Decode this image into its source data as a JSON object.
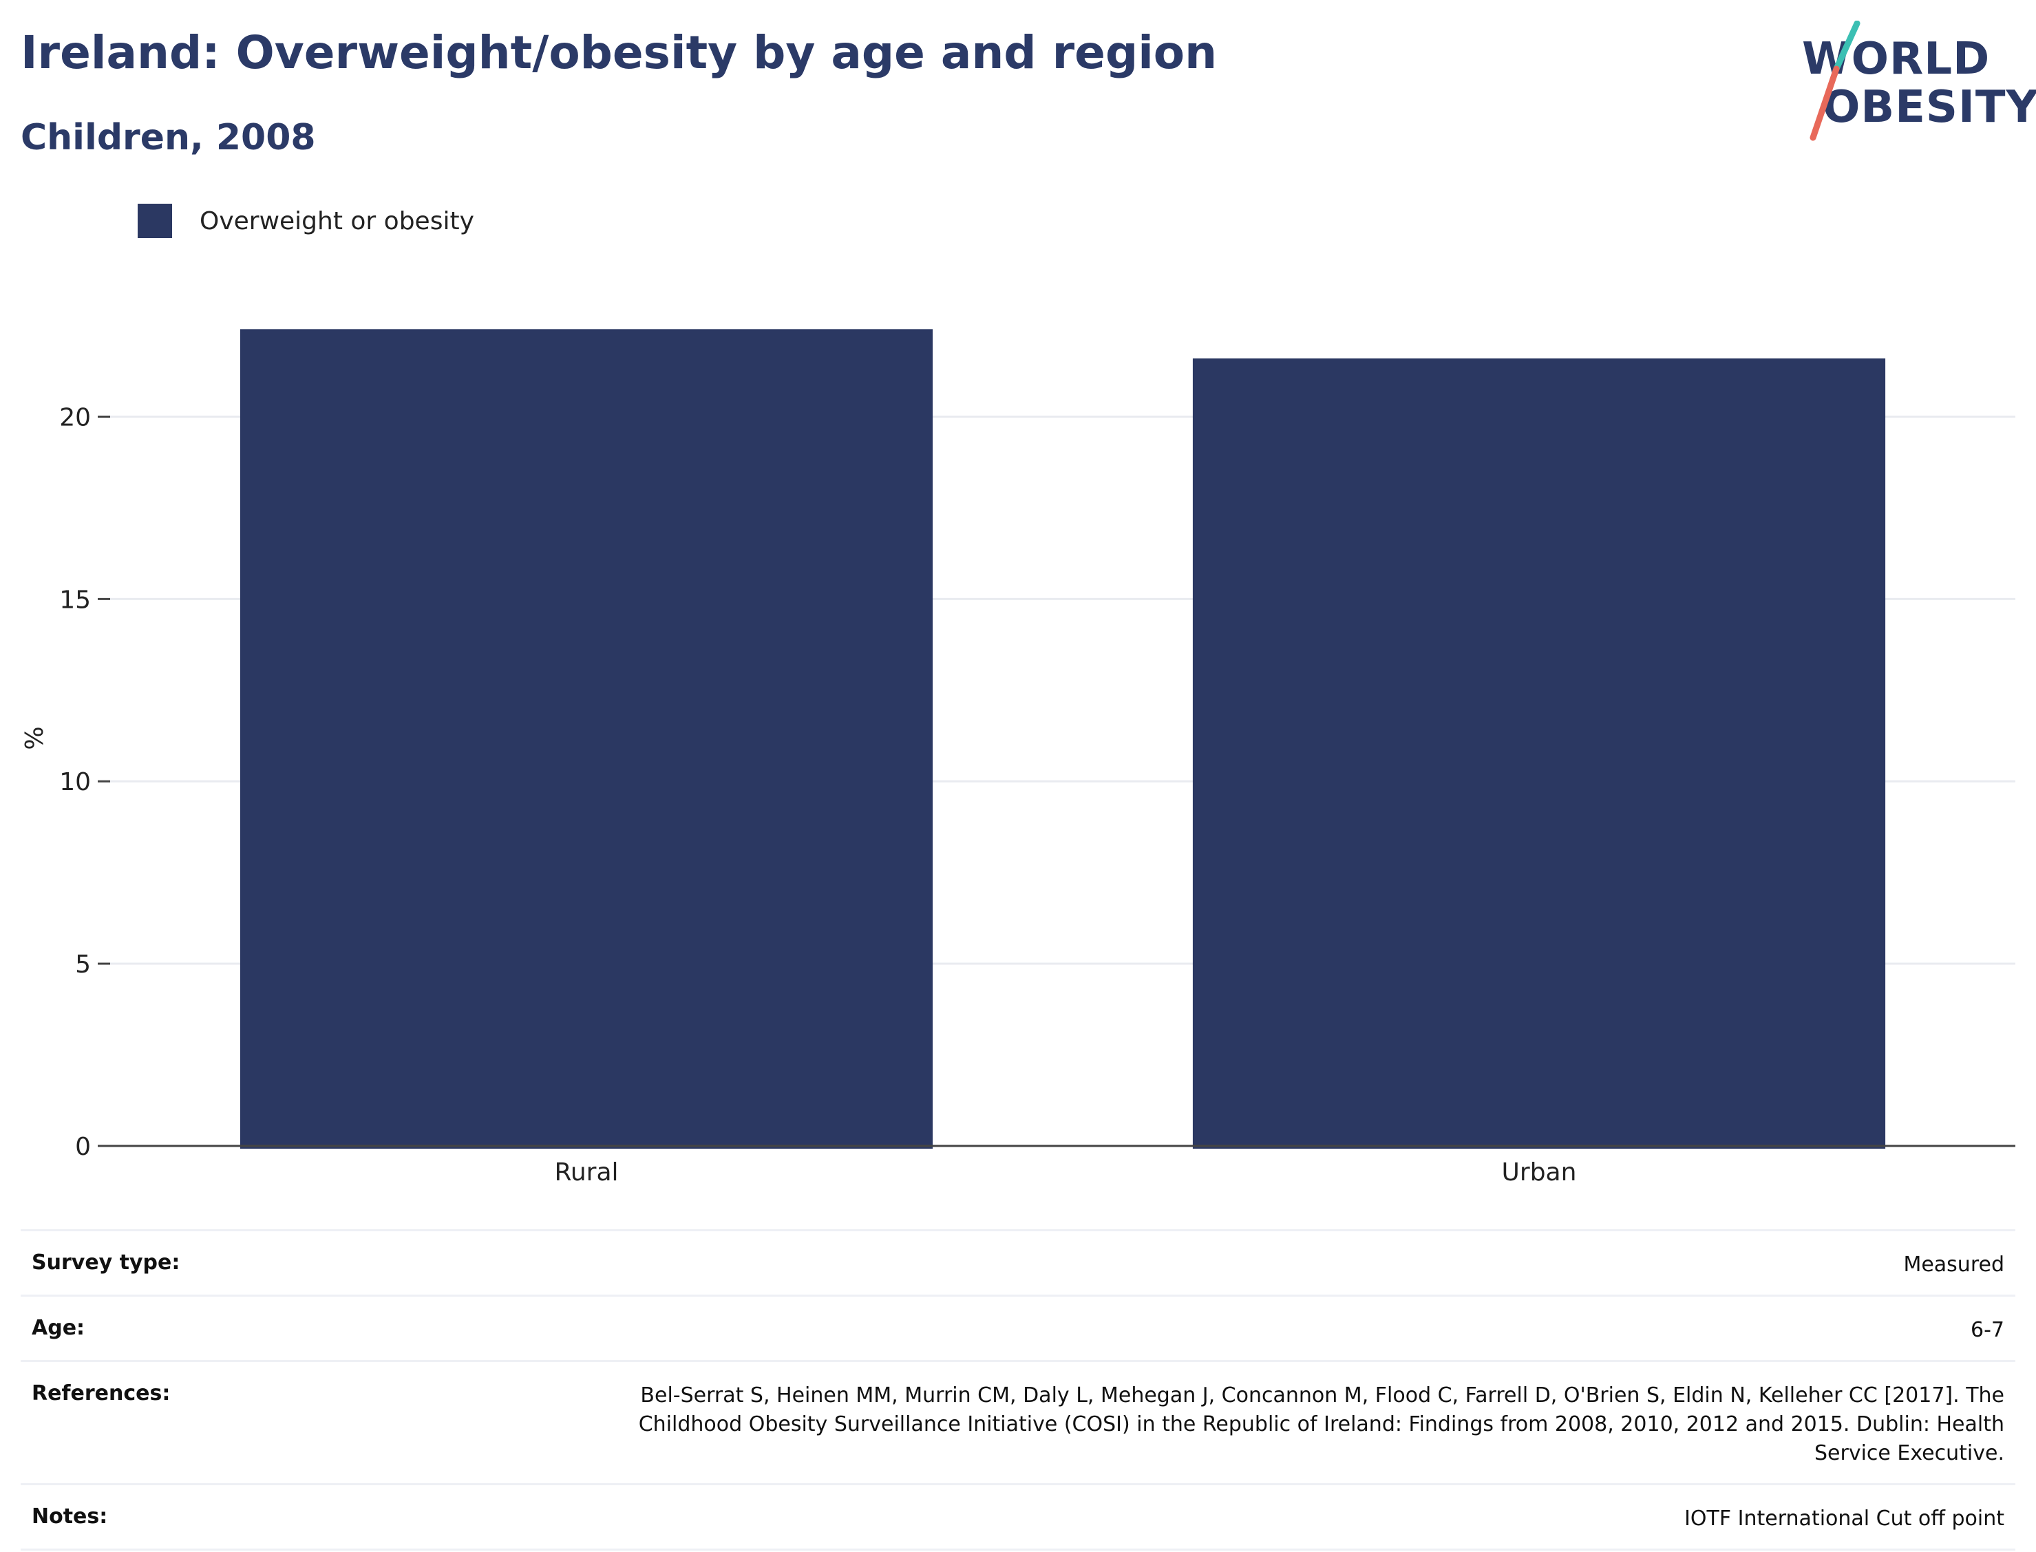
{
  "header": {
    "title": "Ireland: Overweight/obesity by age and region",
    "subtitle": "Children, 2008"
  },
  "logo": {
    "line1": "WORLD",
    "line2": "OBESITY",
    "colors": {
      "text": "#2b3a67",
      "slash_top": "#3bbfb3",
      "slash_bottom": "#e8695a"
    }
  },
  "colors": {
    "bar": "#2b3862",
    "title": "#2b3a67",
    "grid": "#e9ebf0",
    "axis": "#444444"
  },
  "chart_data": {
    "type": "bar",
    "title": "Ireland: Overweight/obesity by age and region",
    "subtitle": "Children, 2008",
    "categories": [
      "Rural",
      "Urban"
    ],
    "series": [
      {
        "name": "Overweight or obesity",
        "values": [
          22.4,
          21.6
        ]
      }
    ],
    "xlabel": "",
    "ylabel": "%",
    "ylim": [
      0,
      23.5
    ],
    "yticks": [
      0,
      5,
      10,
      15,
      20
    ],
    "grid": true,
    "legend": "top-left"
  },
  "meta": {
    "survey_type": {
      "label": "Survey type:",
      "value": "Measured"
    },
    "age": {
      "label": "Age:",
      "value": "6-7"
    },
    "references": {
      "label": "References:",
      "value": "Bel-Serrat S, Heinen MM, Murrin CM, Daly L, Mehegan J, Concannon M, Flood C, Farrell D, O'Brien S, Eldin N, Kelleher CC [2017]. The Childhood Obesity Surveillance Initiative (COSI) in the Republic of Ireland: Findings from 2008, 2010, 2012 and 2015. Dublin: Health Service Executive."
    },
    "notes": {
      "label": "Notes:",
      "value": "IOTF International Cut off point"
    }
  }
}
